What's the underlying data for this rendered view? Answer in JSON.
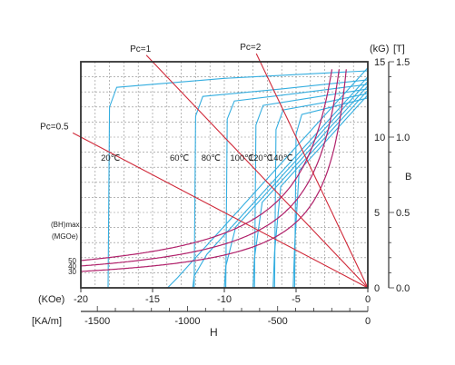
{
  "chart_data": {
    "type": "line",
    "title": "",
    "xlabel": "H",
    "ylabel": "B",
    "x_unit_koe": "(KOe)",
    "x_unit_kam": "[KA/m]",
    "y_unit_kg": "(kG)",
    "y_unit_t": "[T]",
    "xlim_koe": [
      -20,
      0
    ],
    "ylim_kg": [
      0,
      15
    ],
    "grid": true,
    "x_ticks_koe": [
      "-20",
      "-15",
      "-10",
      "-5",
      "0"
    ],
    "x_ticks_kam": [
      "-1500",
      "-1000",
      "-500",
      "0"
    ],
    "y_ticks_kg": [
      "15",
      "10",
      "5",
      "0"
    ],
    "y_ticks_t": [
      "1.5",
      "1.0",
      "0.5",
      "0.0"
    ],
    "load_lines": [
      {
        "label": "Pc=0.5",
        "slope": 0.5
      },
      {
        "label": "Pc=1",
        "slope": 1
      },
      {
        "label": "Pc=2",
        "slope": 2
      }
    ],
    "bhmax_label_1": "(BH)max",
    "bhmax_label_2": "(MGOe)",
    "bhmax_curves": [
      {
        "label": "50",
        "value": 50
      },
      {
        "label": "40",
        "value": 40
      },
      {
        "label": "30",
        "value": 30
      }
    ],
    "temperature_labels": [
      "20℃",
      "60℃",
      "80℃",
      "100℃",
      "120℃",
      "140℃"
    ],
    "series_b": [
      {
        "temp": "20℃",
        "br": 14.6,
        "hcj": -18.2
      },
      {
        "temp": "60℃",
        "br": 14.0,
        "hcj": -12.2
      },
      {
        "temp": "80℃",
        "br": 13.7,
        "hcj": -10.0
      },
      {
        "temp": "100℃",
        "br": 13.4,
        "hcj": -8.0
      },
      {
        "temp": "120℃",
        "br": 13.1,
        "hcj": -6.6
      },
      {
        "temp": "140℃",
        "br": 12.8,
        "hcj": -5.2
      }
    ],
    "series_j": [
      {
        "temp": "20℃",
        "h": [
          -18.1,
          -18.0,
          -17.5,
          -10,
          0
        ],
        "b": [
          0,
          12,
          13.3,
          13.9,
          14.4
        ]
      },
      {
        "temp": "60℃",
        "h": [
          -12.1,
          -12.0,
          -11.5,
          -6,
          0
        ],
        "b": [
          0,
          11.4,
          12.7,
          13.2,
          13.8
        ]
      },
      {
        "temp": "80℃",
        "h": [
          -9.9,
          -9.8,
          -9.3,
          -5,
          0
        ],
        "b": [
          0,
          11.2,
          12.4,
          12.9,
          13.5
        ]
      },
      {
        "temp": "100℃",
        "h": [
          -7.9,
          -7.8,
          -7.3,
          -4,
          0
        ],
        "b": [
          0,
          10.8,
          12.1,
          12.6,
          13.2
        ]
      },
      {
        "temp": "120℃",
        "h": [
          -6.5,
          -6.4,
          -5.9,
          -3,
          0
        ],
        "b": [
          0,
          10.5,
          11.8,
          12.3,
          12.9
        ]
      },
      {
        "temp": "140℃",
        "h": [
          -5.1,
          -5.0,
          -4.6,
          -2.5,
          0
        ],
        "b": [
          0,
          10.2,
          11.5,
          12.0,
          12.6
        ]
      }
    ]
  },
  "colors": {
    "axis": "#333333",
    "grid": "#8a8a8a",
    "load_line": "#d02a3a",
    "bhmax": "#b0206a",
    "curve": "#35aee0"
  }
}
